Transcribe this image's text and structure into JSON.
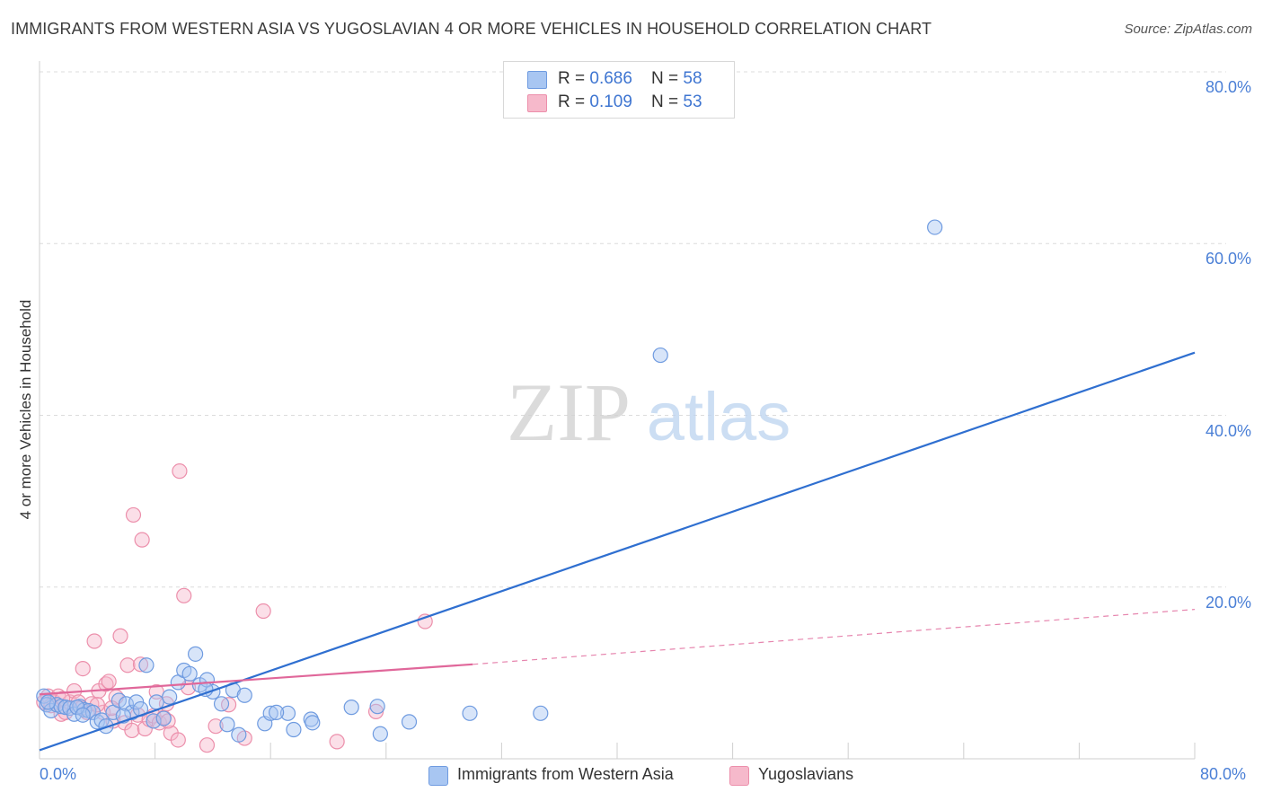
{
  "title": "IMMIGRANTS FROM WESTERN ASIA VS YUGOSLAVIAN 4 OR MORE VEHICLES IN HOUSEHOLD CORRELATION CHART",
  "source": "Source: ZipAtlas.com",
  "watermark": {
    "zip": "ZIP",
    "atlas": "atlas"
  },
  "colors": {
    "blue_fill": "#a8c6f2",
    "blue_stroke": "#6f9be0",
    "blue_line": "#2f6fd0",
    "pink_fill": "#f6b9cb",
    "pink_stroke": "#ec8fab",
    "pink_line": "#e0679a",
    "tick_text": "#4a7fd6",
    "grid": "#dcdcdc"
  },
  "legend_top": [
    {
      "r_label": "R = ",
      "r_value": "0.686",
      "n_label": "N = ",
      "n_value": "58",
      "swatch": "blue"
    },
    {
      "r_label": "R = ",
      "r_value": "0.109",
      "n_label": "N = ",
      "n_value": "53",
      "swatch": "pink"
    }
  ],
  "legend_bottom": [
    {
      "label": "Immigrants from Western Asia",
      "swatch": "blue"
    },
    {
      "label": "Yugoslavians",
      "swatch": "pink"
    }
  ],
  "chart_data": {
    "type": "scatter",
    "title": "IMMIGRANTS FROM WESTERN ASIA VS YUGOSLAVIAN 4 OR MORE VEHICLES IN HOUSEHOLD CORRELATION CHART",
    "xlabel": "",
    "ylabel": "4 or more Vehicles in Household",
    "xlim": [
      0,
      80
    ],
    "ylim": [
      0,
      80
    ],
    "x_tick_labels": [
      "0.0%",
      "80.0%"
    ],
    "y_tick_labels": [
      "20.0%",
      "40.0%",
      "60.0%",
      "80.0%"
    ],
    "y_ticks": [
      20,
      40,
      60,
      80
    ],
    "grid": true,
    "legend_position": "top-center",
    "series": [
      {
        "name": "Immigrants from Western Asia",
        "color": "blue",
        "r": 0.686,
        "n": 58,
        "trend": {
          "x": [
            0,
            80
          ],
          "y": [
            1.0,
            47.3
          ],
          "style": "solid"
        },
        "points": [
          [
            0.3,
            7.3
          ],
          [
            0.5,
            6.3
          ],
          [
            0.8,
            5.6
          ],
          [
            1.2,
            6.3
          ],
          [
            1.5,
            6.1
          ],
          [
            1.8,
            6.0
          ],
          [
            2.1,
            5.9
          ],
          [
            2.4,
            5.2
          ],
          [
            2.8,
            6.1
          ],
          [
            3.1,
            5.7
          ],
          [
            3.4,
            5.6
          ],
          [
            3.7,
            5.4
          ],
          [
            4.0,
            4.3
          ],
          [
            4.3,
            4.5
          ],
          [
            4.6,
            3.8
          ],
          [
            5.1,
            5.4
          ],
          [
            5.5,
            6.8
          ],
          [
            6.0,
            6.4
          ],
          [
            6.4,
            5.4
          ],
          [
            6.7,
            6.6
          ],
          [
            7.0,
            5.8
          ],
          [
            7.4,
            10.9
          ],
          [
            7.9,
            4.4
          ],
          [
            8.1,
            6.6
          ],
          [
            8.6,
            4.7
          ],
          [
            9.0,
            7.2
          ],
          [
            9.6,
            8.9
          ],
          [
            10.0,
            10.3
          ],
          [
            10.4,
            9.9
          ],
          [
            10.8,
            12.2
          ],
          [
            11.1,
            8.6
          ],
          [
            11.6,
            9.2
          ],
          [
            12.0,
            7.8
          ],
          [
            12.6,
            6.4
          ],
          [
            13.0,
            4.0
          ],
          [
            13.4,
            8.0
          ],
          [
            13.8,
            2.8
          ],
          [
            14.2,
            7.4
          ],
          [
            15.6,
            4.1
          ],
          [
            16.0,
            5.3
          ],
          [
            17.2,
            5.3
          ],
          [
            17.6,
            3.4
          ],
          [
            18.8,
            4.6
          ],
          [
            18.9,
            4.2
          ],
          [
            21.6,
            6.0
          ],
          [
            23.4,
            6.1
          ],
          [
            23.6,
            2.9
          ],
          [
            25.6,
            4.3
          ],
          [
            29.8,
            5.3
          ],
          [
            34.7,
            5.3
          ],
          [
            43.0,
            47.0
          ],
          [
            62.0,
            61.9
          ],
          [
            0.6,
            6.6
          ],
          [
            2.6,
            6.0
          ],
          [
            3.0,
            5.1
          ],
          [
            5.8,
            5.0
          ],
          [
            11.5,
            8.1
          ],
          [
            16.4,
            5.4
          ]
        ]
      },
      {
        "name": "Yugoslavians",
        "color": "pink",
        "r": 0.109,
        "n": 53,
        "trend": {
          "x": [
            0,
            30
          ],
          "y": [
            7.5,
            11.0
          ],
          "style": "solid",
          "extension": {
            "x": [
              30,
              80
            ],
            "y": [
              11.0,
              17.4
            ],
            "style": "dashed"
          }
        },
        "points": [
          [
            0.3,
            6.6
          ],
          [
            0.6,
            7.3
          ],
          [
            1.0,
            6.6
          ],
          [
            1.3,
            7.3
          ],
          [
            1.5,
            5.2
          ],
          [
            1.8,
            5.4
          ],
          [
            2.1,
            6.6
          ],
          [
            2.4,
            7.9
          ],
          [
            2.7,
            6.6
          ],
          [
            3.0,
            10.5
          ],
          [
            3.3,
            5.4
          ],
          [
            3.6,
            6.4
          ],
          [
            3.8,
            13.7
          ],
          [
            4.1,
            7.9
          ],
          [
            4.4,
            5.4
          ],
          [
            4.6,
            8.7
          ],
          [
            4.8,
            9.0
          ],
          [
            5.1,
            4.4
          ],
          [
            5.3,
            7.2
          ],
          [
            5.6,
            14.3
          ],
          [
            5.9,
            4.2
          ],
          [
            6.1,
            10.9
          ],
          [
            6.4,
            3.3
          ],
          [
            6.5,
            28.4
          ],
          [
            6.8,
            5.1
          ],
          [
            7.0,
            11.0
          ],
          [
            7.1,
            25.5
          ],
          [
            7.3,
            3.5
          ],
          [
            7.6,
            4.6
          ],
          [
            7.9,
            5.0
          ],
          [
            8.1,
            7.8
          ],
          [
            8.3,
            4.2
          ],
          [
            8.6,
            4.8
          ],
          [
            8.8,
            6.4
          ],
          [
            9.1,
            3.0
          ],
          [
            9.6,
            2.2
          ],
          [
            9.7,
            33.5
          ],
          [
            10.0,
            19.0
          ],
          [
            10.3,
            8.3
          ],
          [
            11.6,
            1.6
          ],
          [
            13.1,
            6.3
          ],
          [
            14.2,
            2.4
          ],
          [
            15.5,
            17.2
          ],
          [
            20.6,
            2.0
          ],
          [
            23.3,
            5.5
          ],
          [
            26.7,
            16.0
          ],
          [
            0.8,
            6.2
          ],
          [
            1.6,
            7.0
          ],
          [
            2.9,
            5.9
          ],
          [
            4.0,
            6.3
          ],
          [
            5.0,
            5.9
          ],
          [
            8.9,
            4.4
          ],
          [
            12.2,
            3.8
          ]
        ]
      }
    ]
  }
}
